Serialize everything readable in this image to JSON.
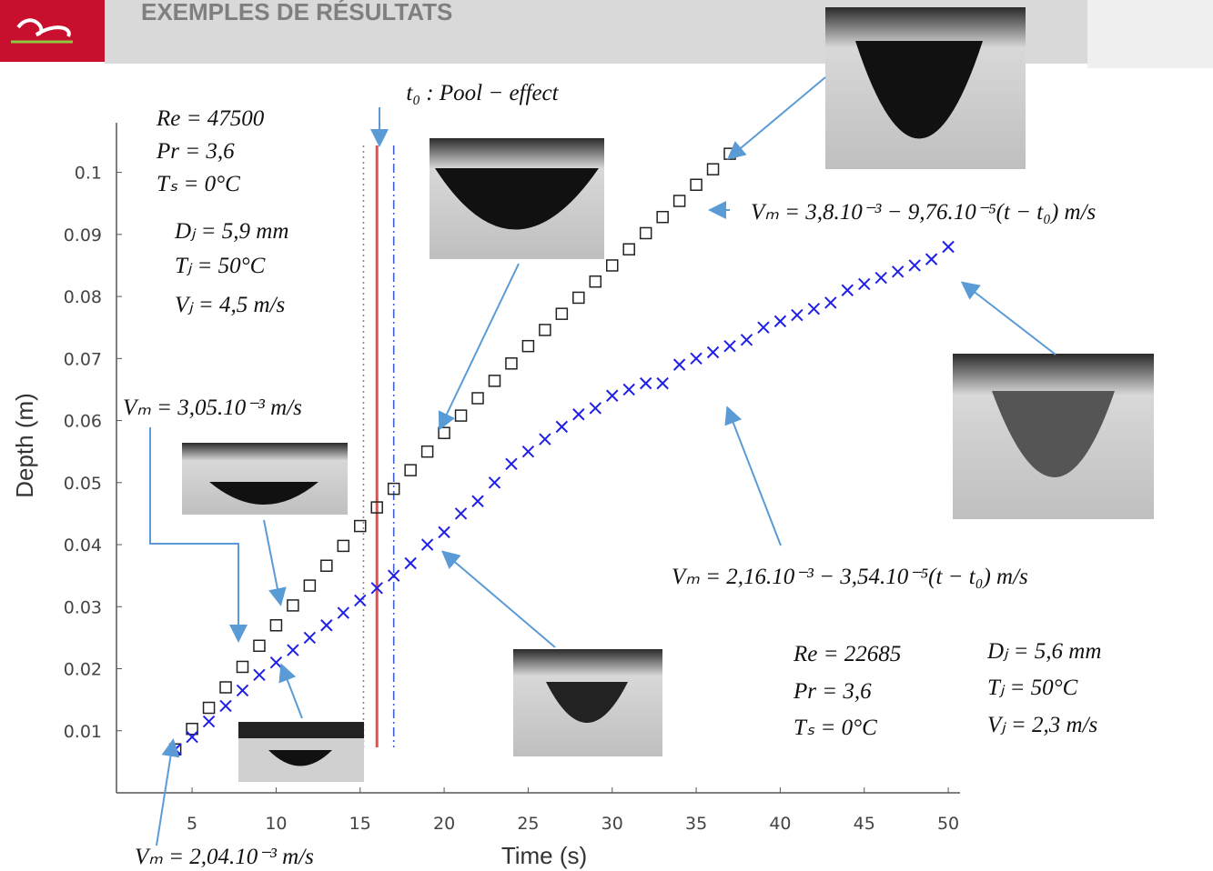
{
  "header": {
    "title": "EXEMPLES DE RÉSULTATS"
  },
  "chart_data": {
    "type": "scatter",
    "x_label": "Time (s)",
    "y_label": "Depth (m)",
    "xlim": [
      0.5,
      50.7
    ],
    "ylim": [
      0,
      0.108
    ],
    "xticks": [
      5,
      10,
      15,
      20,
      25,
      30,
      35,
      40,
      45,
      50
    ],
    "yticks": [
      0.01,
      0.02,
      0.03,
      0.04,
      0.05,
      0.06,
      0.07,
      0.08,
      0.09,
      0.1
    ],
    "grid": false,
    "series": [
      {
        "color": "#222222",
        "marker": "square",
        "x": [
          4,
          5,
          6,
          7,
          8,
          9,
          10,
          11,
          12,
          13,
          14,
          15,
          16,
          17,
          18,
          19,
          20,
          21,
          22,
          23,
          24,
          25,
          26,
          27,
          28,
          29,
          30,
          31,
          32,
          33,
          34,
          35,
          36,
          37
        ],
        "values": [
          0.007,
          0.0103,
          0.0137,
          0.017,
          0.0203,
          0.0237,
          0.027,
          0.0302,
          0.0334,
          0.0366,
          0.0398,
          0.043,
          0.046,
          0.049,
          0.052,
          0.055,
          0.058,
          0.0608,
          0.0636,
          0.0664,
          0.0692,
          0.072,
          0.0746,
          0.0772,
          0.0798,
          0.0824,
          0.085,
          0.0876,
          0.0902,
          0.0928,
          0.0954,
          0.098,
          0.1005,
          0.103
        ]
      },
      {
        "color": "#1f1fe6",
        "marker": "x",
        "x": [
          4,
          5,
          6,
          7,
          8,
          9,
          10,
          11,
          12,
          13,
          14,
          15,
          16,
          17,
          18,
          19,
          20,
          21,
          22,
          23,
          24,
          25,
          26,
          27,
          28,
          29,
          30,
          31,
          32,
          33,
          34,
          35,
          36,
          37,
          38,
          39,
          40,
          41,
          42,
          43,
          44,
          45,
          46,
          47,
          48,
          49,
          50
        ],
        "values": [
          0.007,
          0.009,
          0.0115,
          0.014,
          0.0165,
          0.019,
          0.021,
          0.023,
          0.025,
          0.027,
          0.029,
          0.031,
          0.033,
          0.035,
          0.037,
          0.04,
          0.042,
          0.045,
          0.047,
          0.05,
          0.053,
          0.055,
          0.057,
          0.059,
          0.061,
          0.062,
          0.064,
          0.065,
          0.066,
          0.066,
          0.069,
          0.07,
          0.071,
          0.072,
          0.073,
          0.075,
          0.076,
          0.077,
          0.078,
          0.079,
          0.081,
          0.082,
          0.083,
          0.084,
          0.085,
          0.086,
          0.088
        ]
      }
    ],
    "vlines": [
      {
        "x": 15.2,
        "color": "#888888",
        "style": "dotted"
      },
      {
        "x": 16,
        "color": "#e05050",
        "style": "solid"
      },
      {
        "x": 17,
        "color": "#4060d0",
        "style": "dashdot"
      }
    ],
    "annotations": [
      "t₀ : Pool − effect",
      "Re = 47500",
      "Pr = 3,6",
      "Tₛ = 0°C",
      "Dⱼ = 5,9 mm",
      "Tⱼ = 50°C",
      "Vⱼ = 4,5 m/s",
      "Vₘ = 3,8.10⁻³ − 9,76.10⁻⁵(t − t₀) m/s",
      "Vₘ = 3,05.10⁻³ m/s",
      "Vₘ = 2,16.10⁻³ − 3,54.10⁻⁵(t − t₀) m/s",
      "Re = 22685",
      "Pr = 3,6",
      "Tₛ = 0°C",
      "Dⱼ = 5,6 mm",
      "Tⱼ = 50°C",
      "Vⱼ = 2,3 m/s",
      "Vₘ = 2,04.10⁻³ m/s"
    ]
  }
}
